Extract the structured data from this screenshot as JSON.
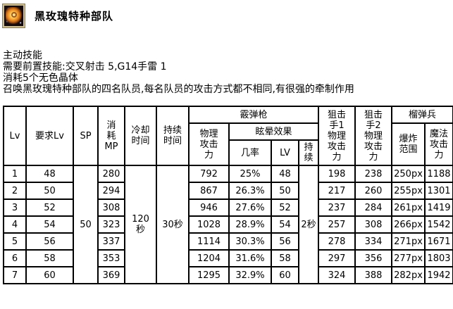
{
  "skill": {
    "icon": "black-rose-skill-icon",
    "title": "黑玫瑰特种部队",
    "type_line": "主动技能",
    "prerequisite_line": "需要前置技能:交叉射击 5,G14手雷 1",
    "cost_line": "消耗5个无色晶体",
    "description_line": "召唤黑玫瑰特种部队的四名队员,每名队员的攻击方式都不相同,有很强的牵制作用"
  },
  "table": {
    "headers": {
      "lv": "Lv",
      "req_lv": "要求Lv",
      "sp": "SP",
      "mp_cost": "消耗MP",
      "cooldown": "冷却时间",
      "duration": "持续时间",
      "shotgun_group": "霰弹枪",
      "shotgun_physical": "物理攻击力",
      "stun_group": "眩晕效果",
      "stun_chance": "几率",
      "stun_lv": "LV",
      "stun_duration": "持续",
      "sniper1": "狙击手1物理攻击力",
      "sniper2": "狙击手2物理攻击力",
      "grenadier_group": "榴弹兵",
      "explosion_range": "爆炸范围",
      "magic_attack": "魔法攻击力"
    },
    "merged": {
      "sp": "50",
      "cooldown": "120秒",
      "duration": "30秒",
      "stun_duration": "2秒"
    },
    "rows": [
      {
        "lv": "1",
        "req_lv": "48",
        "mp": "280",
        "shotgun_phys": "792",
        "stun_chance": "25%",
        "stun_lv": "48",
        "sniper1": "198",
        "sniper2": "238",
        "explosion": "250px",
        "magic": "1188"
      },
      {
        "lv": "2",
        "req_lv": "50",
        "mp": "294",
        "shotgun_phys": "867",
        "stun_chance": "26.3%",
        "stun_lv": "50",
        "sniper1": "217",
        "sniper2": "260",
        "explosion": "255px",
        "magic": "1301"
      },
      {
        "lv": "3",
        "req_lv": "52",
        "mp": "308",
        "shotgun_phys": "946",
        "stun_chance": "27.6%",
        "stun_lv": "52",
        "sniper1": "237",
        "sniper2": "284",
        "explosion": "261px",
        "magic": "1419"
      },
      {
        "lv": "4",
        "req_lv": "54",
        "mp": "323",
        "shotgun_phys": "1028",
        "stun_chance": "28.9%",
        "stun_lv": "54",
        "sniper1": "257",
        "sniper2": "308",
        "explosion": "266px",
        "magic": "1542"
      },
      {
        "lv": "5",
        "req_lv": "56",
        "mp": "337",
        "shotgun_phys": "1114",
        "stun_chance": "30.3%",
        "stun_lv": "56",
        "sniper1": "278",
        "sniper2": "334",
        "explosion": "271px",
        "magic": "1671"
      },
      {
        "lv": "6",
        "req_lv": "58",
        "mp": "353",
        "shotgun_phys": "1204",
        "stun_chance": "31.6%",
        "stun_lv": "58",
        "sniper1": "297",
        "sniper2": "356",
        "explosion": "277px",
        "magic": "1803"
      },
      {
        "lv": "7",
        "req_lv": "60",
        "mp": "369",
        "shotgun_phys": "1295",
        "stun_chance": "32.9%",
        "stun_lv": "60",
        "sniper1": "324",
        "sniper2": "388",
        "explosion": "282px",
        "magic": "1942"
      }
    ]
  },
  "colors": {
    "border": "#000000",
    "background": "#ffffff",
    "icon_frame": "#cfc096",
    "icon_rose": "#f5a233"
  }
}
